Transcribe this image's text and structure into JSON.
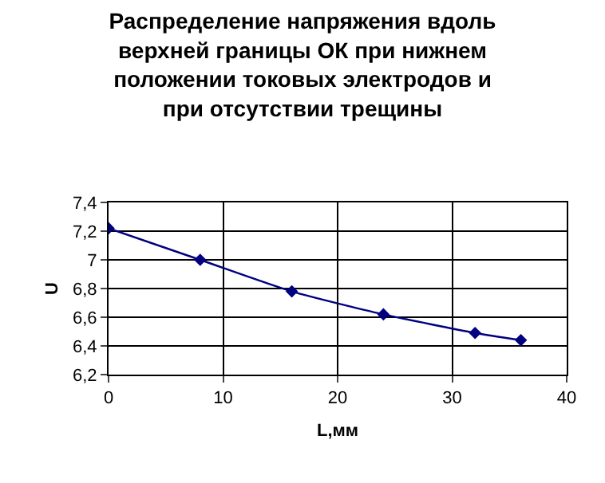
{
  "chart_data": {
    "type": "line",
    "title": "Распределение напряжения вдоль верхней границы ОК при нижнем положении токовых электродов и при отсутствии трещины",
    "xlabel": "L,мм",
    "ylabel": "U",
    "x": [
      0,
      8,
      16,
      24,
      32,
      36
    ],
    "series": [
      {
        "color": "#000080",
        "values": [
          7.22,
          7.0,
          6.78,
          6.62,
          6.49,
          6.44
        ]
      }
    ],
    "xlim": [
      0,
      40
    ],
    "xticks": [
      0,
      10,
      20,
      30,
      40
    ],
    "ylim": [
      6.2,
      7.4
    ],
    "yticks": [
      {
        "value": 6.2,
        "label": "6,2"
      },
      {
        "value": 6.4,
        "label": "6,4"
      },
      {
        "value": 6.6,
        "label": "6,6"
      },
      {
        "value": 6.8,
        "label": "6,8"
      },
      {
        "value": 7,
        "label": "7"
      },
      {
        "value": 7.2,
        "label": "7,2"
      },
      {
        "value": 7.4,
        "label": "7,4"
      }
    ],
    "grid": true,
    "marker": "diamond",
    "line_style": "solid"
  }
}
